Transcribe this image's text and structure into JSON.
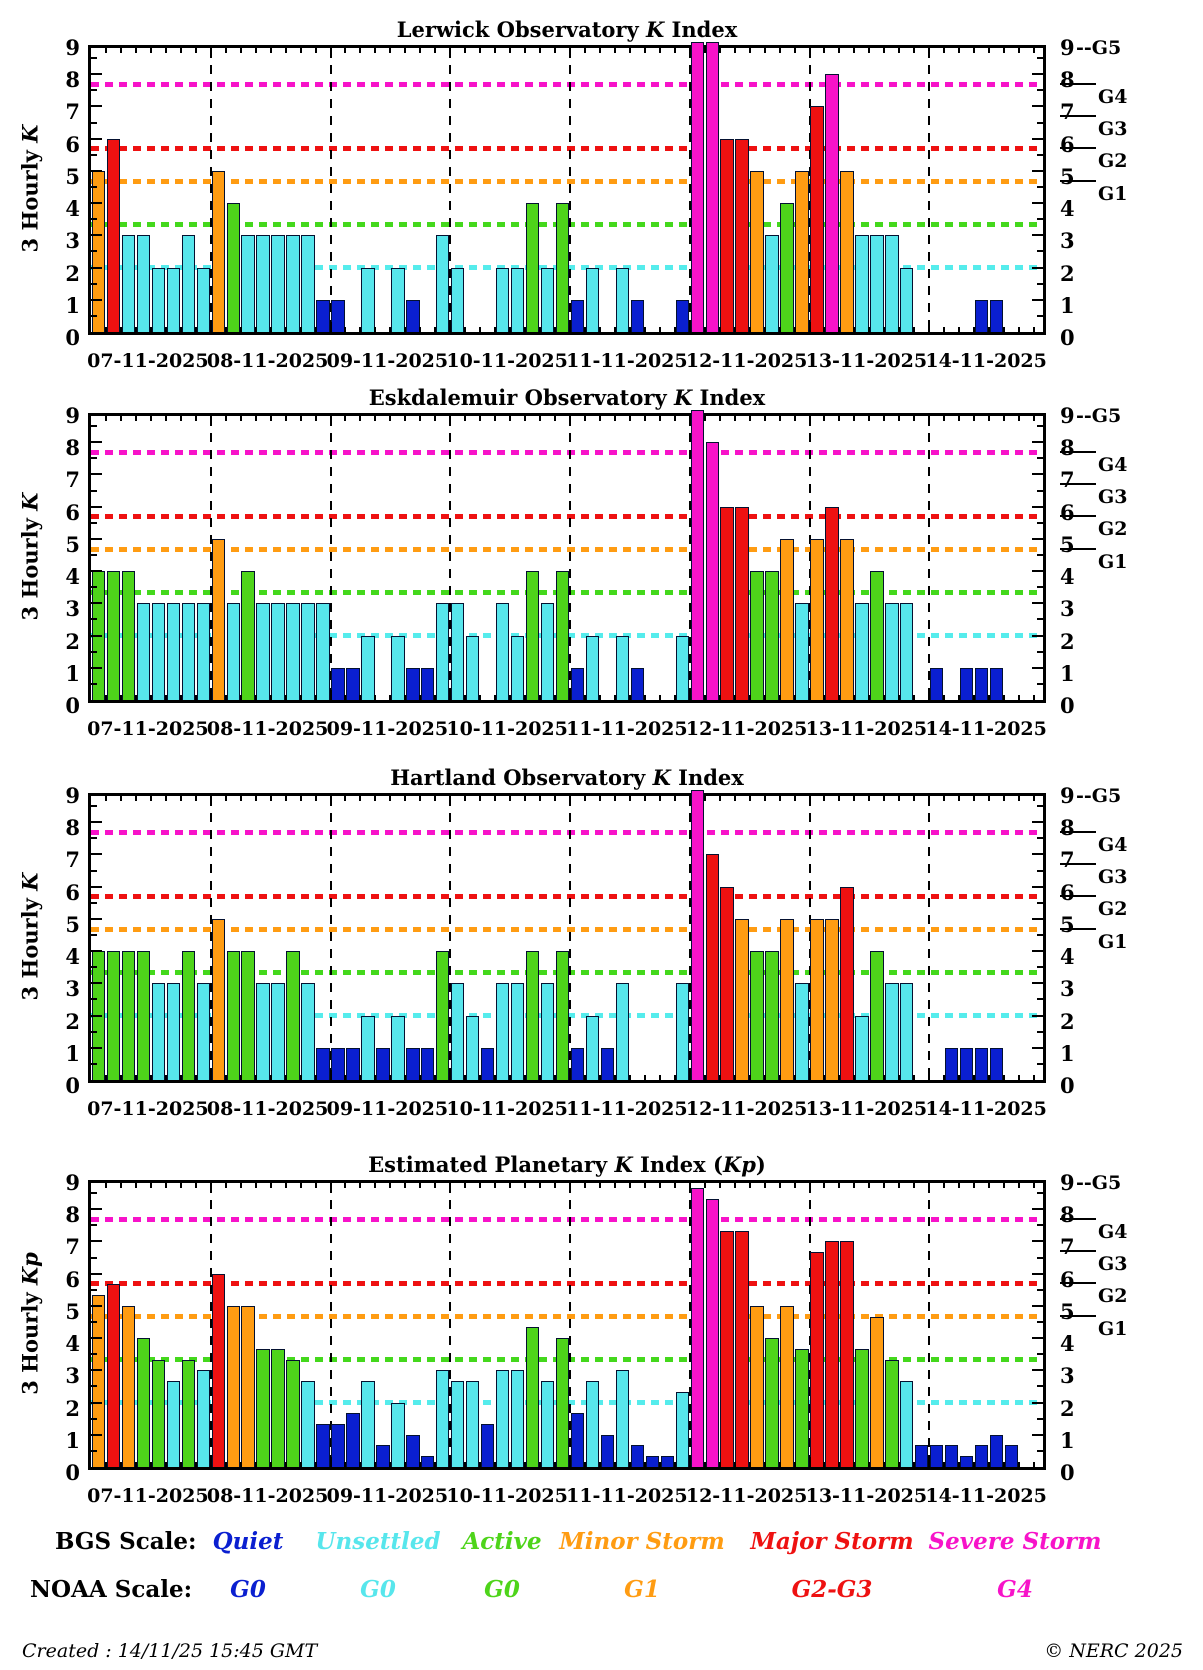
{
  "chart_data": {
    "type": "bar",
    "ylim": [
      0,
      9
    ],
    "x_categories": [
      "07-11-2025",
      "08-11-2025",
      "09-11-2025",
      "10-11-2025",
      "11-11-2025",
      "12-11-2025",
      "13-11-2025",
      "14-11-2025"
    ],
    "y_ticks": [
      0,
      1,
      2,
      3,
      4,
      5,
      6,
      7,
      8,
      9
    ],
    "slots_per_day": 8,
    "thresholds": [
      {
        "value": 2.0,
        "color_key": "unsettled"
      },
      {
        "value": 3.33,
        "color_key": "active"
      },
      {
        "value": 4.67,
        "color_key": "minor"
      },
      {
        "value": 5.67,
        "color_key": "major"
      },
      {
        "value": 7.67,
        "color_key": "severe"
      }
    ],
    "g_scale": [
      {
        "label": "G5",
        "value": 9,
        "inline_dash": "--"
      },
      {
        "label": "G4",
        "value": 7.67
      },
      {
        "label": "G3",
        "value": 6.67
      },
      {
        "label": "G2",
        "value": 5.67
      },
      {
        "label": "G1",
        "value": 4.67
      }
    ],
    "panels": [
      {
        "title_parts": [
          [
            "Lerwick Observatory ",
            0
          ],
          [
            "K",
            1
          ],
          [
            " Index",
            0
          ]
        ],
        "ylabel_parts": [
          [
            "3 Hourly ",
            0
          ],
          [
            "K",
            1
          ]
        ],
        "days": [
          [
            5,
            6,
            3,
            3,
            2,
            2,
            3,
            2
          ],
          [
            5,
            4,
            3,
            3,
            3,
            3,
            3,
            1
          ],
          [
            1,
            0,
            2,
            0,
            2,
            1,
            0,
            3
          ],
          [
            2,
            0,
            0,
            2,
            2,
            4,
            2,
            4
          ],
          [
            1,
            2,
            0,
            2,
            1,
            0,
            0,
            1
          ],
          [
            9,
            9,
            6,
            6,
            5,
            3,
            4,
            5
          ],
          [
            7,
            8,
            5,
            3,
            3,
            3,
            2,
            0
          ],
          [
            0,
            0,
            0,
            1,
            1,
            0,
            0,
            0
          ]
        ]
      },
      {
        "title_parts": [
          [
            "Eskdalemuir Observatory ",
            0
          ],
          [
            "K",
            1
          ],
          [
            " Index",
            0
          ]
        ],
        "ylabel_parts": [
          [
            "3 Hourly ",
            0
          ],
          [
            "K",
            1
          ]
        ],
        "days": [
          [
            4,
            4,
            4,
            3,
            3,
            3,
            3,
            3
          ],
          [
            5,
            3,
            4,
            3,
            3,
            3,
            3,
            3
          ],
          [
            1,
            1,
            2,
            0,
            2,
            1,
            1,
            3
          ],
          [
            3,
            2,
            0,
            3,
            2,
            4,
            3,
            4
          ],
          [
            1,
            2,
            0,
            2,
            1,
            0,
            0,
            2
          ],
          [
            9,
            8,
            6,
            6,
            4,
            4,
            5,
            3
          ],
          [
            5,
            6,
            5,
            3,
            4,
            3,
            3,
            0
          ],
          [
            1,
            0,
            1,
            1,
            1,
            0,
            0,
            0
          ]
        ]
      },
      {
        "title_parts": [
          [
            "Hartland Observatory ",
            0
          ],
          [
            "K",
            1
          ],
          [
            " Index",
            0
          ]
        ],
        "ylabel_parts": [
          [
            "3 Hourly ",
            0
          ],
          [
            "K",
            1
          ]
        ],
        "days": [
          [
            4,
            4,
            4,
            4,
            3,
            3,
            4,
            3
          ],
          [
            5,
            4,
            4,
            3,
            3,
            4,
            3,
            1
          ],
          [
            1,
            1,
            2,
            1,
            2,
            1,
            1,
            4
          ],
          [
            3,
            2,
            1,
            3,
            3,
            4,
            3,
            4
          ],
          [
            1,
            2,
            1,
            3,
            0,
            0,
            0,
            3
          ],
          [
            9,
            7,
            6,
            5,
            4,
            4,
            5,
            3
          ],
          [
            5,
            5,
            6,
            2,
            4,
            3,
            3,
            0
          ],
          [
            0,
            1,
            1,
            1,
            1,
            0,
            0,
            0
          ]
        ]
      },
      {
        "title_parts": [
          [
            "Estimated Planetary ",
            0
          ],
          [
            "K",
            1
          ],
          [
            " Index (",
            0
          ],
          [
            "Kp",
            1
          ],
          [
            ")",
            0
          ]
        ],
        "ylabel_parts": [
          [
            "3 Hourly ",
            0
          ],
          [
            "Kp",
            1
          ]
        ],
        "days": [
          [
            5.33,
            5.67,
            5,
            4,
            3.33,
            2.67,
            3.33,
            3
          ],
          [
            6,
            5,
            5,
            3.67,
            3.67,
            3.33,
            2.67,
            1.33
          ],
          [
            1.33,
            1.67,
            2.67,
            0.67,
            2,
            1,
            0.33,
            3
          ],
          [
            2.67,
            2.67,
            1.33,
            3,
            3,
            4.33,
            2.67,
            4
          ],
          [
            1.67,
            2.67,
            1,
            3,
            0.67,
            0.33,
            0.33,
            2.33
          ],
          [
            8.67,
            8.33,
            7.33,
            7.33,
            5,
            4,
            5,
            3.67
          ],
          [
            6.67,
            7,
            7,
            3.67,
            4.67,
            3.33,
            2.67,
            0.67
          ],
          [
            0.67,
            0.67,
            0.33,
            0.67,
            1,
            0.67,
            0,
            0
          ]
        ]
      }
    ]
  },
  "palette": {
    "quiet": "#0a1fd0",
    "unsettled": "#57e6ec",
    "active": "#4ed41a",
    "minor": "#ff9c12",
    "major": "#ee1111",
    "severe": "#f713c9",
    "outline": "#041130",
    "line_unsettled": "#55ecec",
    "line_active": "#44d81c",
    "line_minor": "#ff9c12",
    "line_major": "#ee1111",
    "line_severe": "#f713c9"
  },
  "legend": {
    "bgs_label": "BGS Scale:",
    "noaa_label": "NOAA Scale:",
    "bgs": [
      {
        "text": "Quiet",
        "color_key": "quiet"
      },
      {
        "text": "Unsettled",
        "color_key": "unsettled"
      },
      {
        "text": "Active",
        "color_key": "active"
      },
      {
        "text": "Minor Storm",
        "color_key": "minor"
      },
      {
        "text": "Major Storm",
        "color_key": "major"
      },
      {
        "text": "Severe Storm",
        "color_key": "severe"
      }
    ],
    "noaa": [
      {
        "text": "G0",
        "color_key": "quiet"
      },
      {
        "text": "G0",
        "color_key": "unsettled"
      },
      {
        "text": "G0",
        "color_key": "active"
      },
      {
        "text": "G1",
        "color_key": "minor"
      },
      {
        "text": "G2-G3",
        "color_key": "major"
      },
      {
        "text": "G4",
        "color_key": "severe"
      }
    ]
  },
  "footer": {
    "created": "Created : 14/11/25 15:45 GMT",
    "copyright": "© NERC 2025"
  }
}
